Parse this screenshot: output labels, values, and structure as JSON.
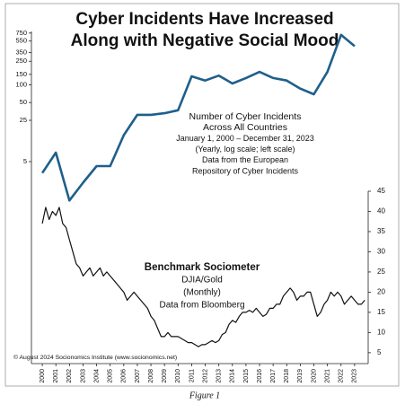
{
  "chart_data": {
    "type": "line",
    "title_lines": [
      "Cyber Incidents Have Increased",
      "Along with Negative Social Mood"
    ],
    "annotations": [
      {
        "lines": [
          "Number of Cyber Incidents",
          "Across All Countries",
          "January 1, 2000 – December 31, 2023",
          "(Yearly, log scale; left scale)",
          "Data from the European",
          "Repository of Cyber Incidents"
        ]
      },
      {
        "lines": [
          "Benchmark Sociometer",
          "DJIA/Gold",
          "(Monthly)",
          "Data from Bloomberg"
        ]
      }
    ],
    "credit": "© August 2024 Socionomics Institute (www.socionomics.net)",
    "caption": "Figure 1",
    "xlim": [
      1999.2,
      2024.0
    ],
    "xticks": [
      2000,
      2001,
      2002,
      2003,
      2004,
      2005,
      2006,
      2007,
      2008,
      2009,
      2010,
      2011,
      2012,
      2013,
      2014,
      2015,
      2016,
      2017,
      2018,
      2019,
      2020,
      2021,
      2022,
      2023
    ],
    "log_scale": true,
    "ylim": [
      0.0019,
      800
    ],
    "yticks": [
      5,
      25,
      50,
      100,
      150,
      250,
      350,
      550,
      750
    ],
    "y2lim": [
      2.3,
      45
    ],
    "y2ticks": [
      5,
      10,
      15,
      20,
      25,
      30,
      35,
      40,
      45
    ],
    "series": [
      {
        "color": "#1f5f8b",
        "x": [
          2000,
          2001,
          2002,
          2003,
          2004,
          2005,
          2006,
          2007,
          2008,
          2009,
          2010,
          2011,
          2012,
          2013,
          2014,
          2015,
          2016,
          2017,
          2018,
          2019,
          2020,
          2021,
          2022,
          2023
        ],
        "values": [
          3.2,
          7.1,
          1.1,
          2.2,
          4.2,
          4.2,
          14,
          31,
          31,
          33,
          37,
          139,
          118,
          143,
          105,
          130,
          165,
          130,
          118,
          86,
          69,
          165,
          700,
          450
        ]
      },
      {
        "color": "#111111",
        "axis": "y2",
        "x": [
          2000,
          2000.25,
          2000.5,
          2000.75,
          2001,
          2001.25,
          2001.5,
          2001.75,
          2002,
          2002.25,
          2002.5,
          2002.75,
          2003,
          2003.25,
          2003.5,
          2003.75,
          2004,
          2004.25,
          2004.5,
          2004.75,
          2005,
          2005.25,
          2005.5,
          2005.75,
          2006,
          2006.25,
          2006.5,
          2006.75,
          2007,
          2007.25,
          2007.5,
          2007.75,
          2008,
          2008.25,
          2008.5,
          2008.75,
          2009,
          2009.25,
          2009.5,
          2009.75,
          2010,
          2010.25,
          2010.5,
          2010.75,
          2011,
          2011.25,
          2011.5,
          2011.75,
          2012,
          2012.25,
          2012.5,
          2012.75,
          2013,
          2013.25,
          2013.5,
          2013.75,
          2014,
          2014.25,
          2014.5,
          2014.75,
          2015,
          2015.25,
          2015.5,
          2015.75,
          2016,
          2016.25,
          2016.5,
          2016.75,
          2017,
          2017.25,
          2017.5,
          2017.75,
          2018,
          2018.25,
          2018.5,
          2018.75,
          2019,
          2019.25,
          2019.5,
          2019.75,
          2020,
          2020.25,
          2020.5,
          2020.75,
          2021,
          2021.25,
          2021.5,
          2021.75,
          2022,
          2022.25,
          2022.5,
          2022.75,
          2023,
          2023.25,
          2023.5,
          2023.75
        ],
        "values": [
          37,
          41,
          38,
          40,
          39,
          41,
          37,
          36,
          33,
          30,
          27,
          26,
          24,
          25,
          26,
          24,
          25,
          26,
          24,
          25,
          24,
          23,
          22,
          21,
          20,
          18,
          19,
          20,
          19,
          18,
          17,
          16,
          14,
          13,
          11,
          9,
          9,
          10,
          9,
          9,
          9,
          8.5,
          8,
          7.5,
          7.5,
          7,
          6.5,
          7,
          7,
          7.5,
          8,
          7.5,
          8,
          9.5,
          10,
          12,
          13,
          12.5,
          14,
          15,
          15,
          15.5,
          15,
          16,
          15,
          14,
          14.5,
          16,
          16,
          17,
          17,
          19,
          20,
          21,
          20,
          18,
          19,
          19,
          20,
          20,
          17,
          14,
          15,
          17,
          18,
          20,
          19,
          20,
          19,
          17,
          18,
          19,
          18,
          17,
          17,
          18
        ]
      }
    ]
  }
}
